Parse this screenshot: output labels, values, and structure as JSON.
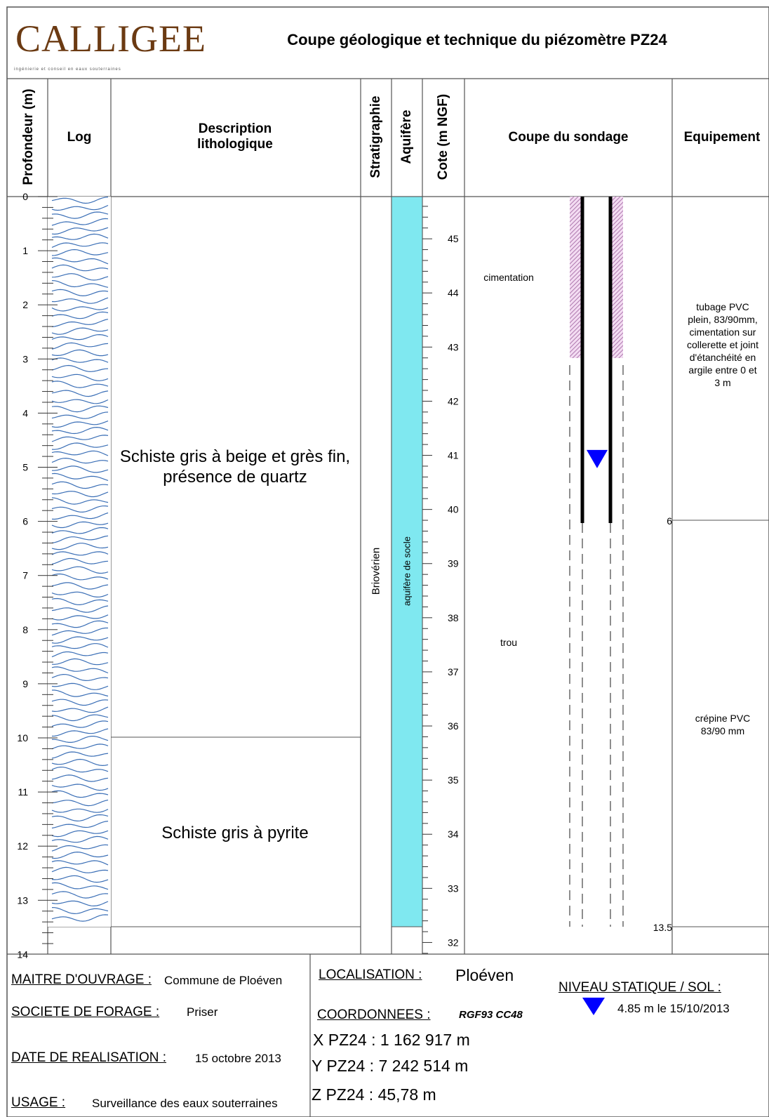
{
  "header": {
    "logo_text": "CALLIGEE",
    "logo_tagline": "ingénierie et conseil en eaux souterraines",
    "title": "Coupe géologique et technique du piézomètre PZ24"
  },
  "columns": {
    "profondeur": "Profondeur (m)",
    "log": "Log",
    "description": "Description lithologique",
    "stratigraphie": "Stratigraphie",
    "aquifere": "Aquifère",
    "cote": "Cote (m NGF)",
    "coupe": "Coupe du sondage",
    "equipement": "Equipement"
  },
  "depth_ticks": [
    "0",
    "1",
    "2",
    "3",
    "4",
    "5",
    "6",
    "7",
    "8",
    "9",
    "10",
    "11",
    "12",
    "13",
    "14"
  ],
  "cote_ticks": [
    "45",
    "44",
    "43",
    "42",
    "41",
    "40",
    "39",
    "38",
    "37",
    "36",
    "35",
    "34",
    "33",
    "32"
  ],
  "lithology": [
    {
      "top": 0,
      "bottom": 10,
      "text": "Schiste gris à beige et grès fin, présence de quartz"
    },
    {
      "top": 10,
      "bottom": 13.5,
      "text": "Schiste gris à pyrite"
    }
  ],
  "stratigraphie": "Briovérien",
  "aquifere": "aquifère de socle",
  "coupe_labels": {
    "cimentation": "cimentation",
    "trou": "trou"
  },
  "equipement": {
    "tubage": "tubage PVC plein, 83/90mm, cimentation sur collerette et joint d'étanchéité en argile entre 0 et 3 m",
    "crepine": "crépine PVC 83/90 mm",
    "depth_6": "6",
    "depth_13_5": "13.5"
  },
  "niveau_depth_m": 4.85,
  "footer": {
    "maitre_label": "MAITRE D'OUVRAGE :",
    "maitre_value": "Commune de Ploéven",
    "societe_label": "SOCIETE DE FORAGE :",
    "societe_value": "Priser",
    "date_label": "DATE DE REALISATION :",
    "date_value": "15 octobre 2013",
    "usage_label": "USAGE :",
    "usage_value": "Surveillance des eaux souterraines",
    "localisation_label": "LOCALISATION :",
    "localisation_value": "Ploéven",
    "coord_label": "COORDONNEES :",
    "coord_system": "RGF93 CC48",
    "x": "X PZ24 : 1 162 917 m",
    "y": "Y PZ24 : 7 242 514 m",
    "z": "Z PZ24 : 45,78 m",
    "niveau_label": "NIVEAU STATIQUE / SOL :",
    "niveau_value": "4.85 m le 15/10/2013"
  },
  "colors": {
    "aquifer": "#7fe8f0",
    "pattern": "#3b6fb6",
    "cement": "#d9a8d8",
    "water": "#0000ff"
  }
}
